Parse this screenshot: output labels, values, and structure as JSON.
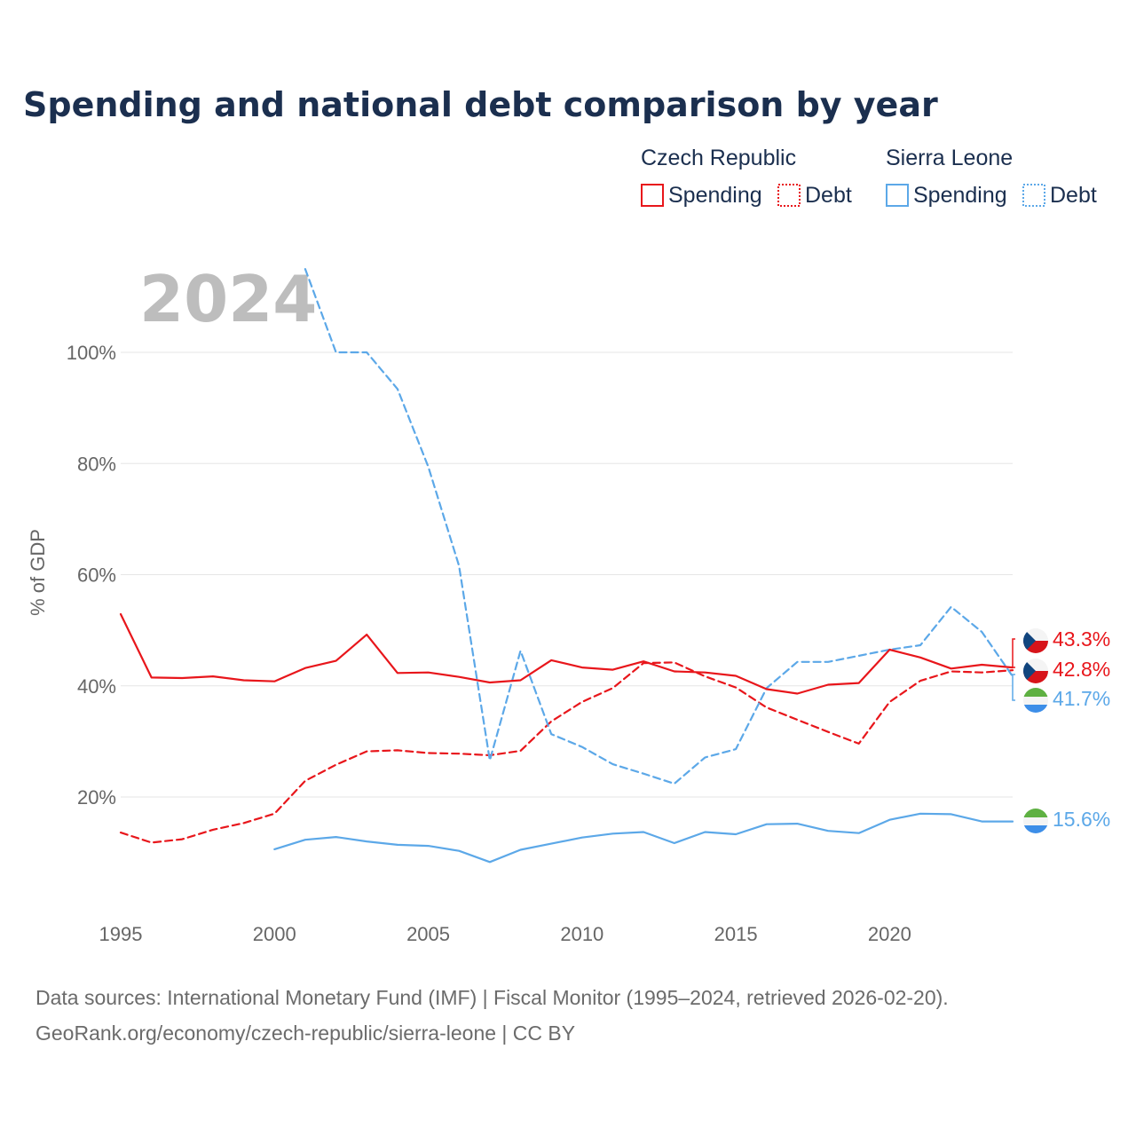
{
  "title": "Spending and national debt comparison by year",
  "year_display": "2024",
  "legend": {
    "czech_name": "Czech Republic",
    "sierra_name": "Sierra Leone",
    "spending_label": "Spending",
    "debt_label": "Debt"
  },
  "colors": {
    "czech": "#e8161b",
    "sierra": "#5ca8e8",
    "grid": "#e6e6e6",
    "axis_text": "#666666"
  },
  "end_labels": {
    "czech_spending": "43.3%",
    "czech_debt": "42.8%",
    "sierra_debt": "41.7%",
    "sierra_spending": "15.6%"
  },
  "footer": {
    "line1": "Data sources: International Monetary Fund (IMF) | Fiscal Monitor (1995–2024, retrieved 2026-02-20).",
    "line2": "GeoRank.org/economy/czech-republic/sierra-leone | CC BY"
  },
  "chart_data": {
    "type": "line",
    "title": "Spending and national debt comparison by year",
    "xlabel": "",
    "ylabel": "% of GDP",
    "xlim": [
      1995,
      2024
    ],
    "ylim": [
      0,
      115
    ],
    "y_ticks": [
      20,
      40,
      60,
      80,
      100
    ],
    "y_tick_labels": [
      "20%",
      "40%",
      "60%",
      "80%",
      "100%"
    ],
    "x_ticks": [
      1995,
      2000,
      2005,
      2010,
      2015,
      2020
    ],
    "x_tick_labels": [
      "1995",
      "2000",
      "2005",
      "2010",
      "2015",
      "2020"
    ],
    "grid": true,
    "legend_position": "top-right",
    "series": [
      {
        "name": "Czech Republic Spending",
        "country": "czech",
        "style": "solid",
        "x": [
          1995,
          1996,
          1997,
          1998,
          1999,
          2000,
          2001,
          2002,
          2003,
          2004,
          2005,
          2006,
          2007,
          2008,
          2009,
          2010,
          2011,
          2012,
          2013,
          2014,
          2015,
          2016,
          2017,
          2018,
          2019,
          2020,
          2021,
          2022,
          2023,
          2024
        ],
        "values": [
          52.9,
          41.5,
          41.4,
          41.7,
          41.0,
          40.8,
          43.2,
          44.5,
          49.2,
          42.3,
          42.4,
          41.6,
          40.6,
          41.0,
          44.6,
          43.3,
          42.9,
          44.4,
          42.6,
          42.4,
          41.8,
          39.4,
          38.6,
          40.2,
          40.5,
          46.5,
          45.1,
          43.1,
          43.8,
          43.3
        ]
      },
      {
        "name": "Czech Republic Debt",
        "country": "czech",
        "style": "dashed",
        "x": [
          1995,
          1996,
          1997,
          1998,
          1999,
          2000,
          2001,
          2002,
          2003,
          2004,
          2005,
          2006,
          2007,
          2008,
          2009,
          2010,
          2011,
          2012,
          2013,
          2014,
          2015,
          2016,
          2017,
          2018,
          2019,
          2020,
          2021,
          2022,
          2023,
          2024
        ],
        "values": [
          13.6,
          11.8,
          12.4,
          14.1,
          15.3,
          17.0,
          22.9,
          25.8,
          28.2,
          28.4,
          27.9,
          27.8,
          27.5,
          28.3,
          33.6,
          37.1,
          39.6,
          44.1,
          44.2,
          41.7,
          39.7,
          36.1,
          33.9,
          31.7,
          29.6,
          37.1,
          40.9,
          42.6,
          42.4,
          42.8
        ]
      },
      {
        "name": "Sierra Leone Spending",
        "country": "sierra",
        "style": "solid",
        "x": [
          2000,
          2001,
          2002,
          2003,
          2004,
          2005,
          2006,
          2007,
          2008,
          2009,
          2010,
          2011,
          2012,
          2013,
          2014,
          2015,
          2016,
          2017,
          2018,
          2019,
          2020,
          2021,
          2022,
          2023,
          2024
        ],
        "values": [
          10.6,
          12.3,
          12.8,
          12.0,
          11.4,
          11.2,
          10.3,
          8.3,
          10.5,
          11.6,
          12.7,
          13.4,
          13.7,
          11.7,
          13.7,
          13.3,
          15.1,
          15.2,
          13.9,
          13.5,
          15.9,
          17.0,
          16.9,
          15.6,
          15.6
        ]
      },
      {
        "name": "Sierra Leone Debt",
        "country": "sierra",
        "style": "dashed",
        "x": [
          2001,
          2002,
          2003,
          2004,
          2005,
          2006,
          2007,
          2008,
          2009,
          2010,
          2011,
          2012,
          2013,
          2014,
          2015,
          2016,
          2017,
          2018,
          2019,
          2020,
          2021,
          2022,
          2023,
          2024
        ],
        "values": [
          115.0,
          100.0,
          100.0,
          93.4,
          79.4,
          61.6,
          26.6,
          46.3,
          31.3,
          29.0,
          25.9,
          24.2,
          22.4,
          27.1,
          28.6,
          39.6,
          44.3,
          44.3,
          45.4,
          46.5,
          47.3,
          54.2,
          49.7,
          41.7
        ]
      }
    ]
  }
}
